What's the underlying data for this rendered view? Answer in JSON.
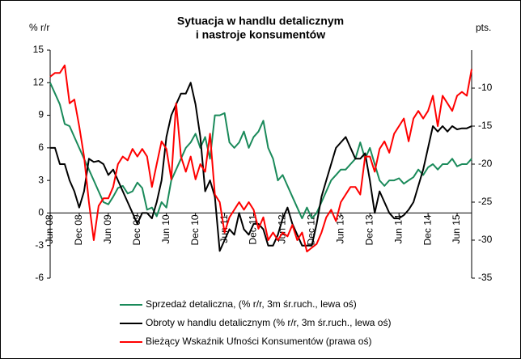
{
  "chart_data": {
    "type": "line",
    "title": [
      "Sytuacja w handlu detalicznym",
      "i nastroje konsumentów"
    ],
    "y_label": "% r/r",
    "y2_label": "pts.",
    "categories": [
      "Jun 08",
      null,
      null,
      null,
      null,
      null,
      "Dec 08",
      null,
      null,
      null,
      null,
      null,
      "Jun 09",
      null,
      null,
      null,
      null,
      null,
      "Dec 09",
      null,
      null,
      null,
      null,
      null,
      "Jun 10",
      null,
      null,
      null,
      null,
      null,
      "Dec 10",
      null,
      null,
      null,
      null,
      null,
      "Jun 11",
      null,
      null,
      null,
      null,
      null,
      "Dec 11",
      null,
      null,
      null,
      null,
      null,
      "Jun 12",
      null,
      null,
      null,
      null,
      null,
      "Dec 12",
      null,
      null,
      null,
      null,
      null,
      "Jun 13",
      null,
      null,
      null,
      null,
      null,
      "Dec 13",
      null,
      null,
      null,
      null,
      null,
      "Jun 14",
      null,
      null,
      null,
      null,
      null,
      "Dec 14",
      null,
      null,
      null,
      null,
      null,
      "Jun 15",
      null,
      null,
      null
    ],
    "series": [
      {
        "name": "Sprzedaż detaliczna, (% r/r, 3m śr.ruch., lewa oś)",
        "color": "#1a8a5a",
        "axis": "y",
        "values": [
          12,
          11,
          10,
          8.2,
          8,
          7,
          6,
          5,
          4,
          3,
          2,
          1,
          0.8,
          1.5,
          2.3,
          2.5,
          1.8,
          2,
          2.8,
          2.3,
          0.3,
          0.5,
          -0.3,
          1,
          0.5,
          3,
          4,
          5,
          6,
          6.5,
          7.3,
          6,
          7,
          5,
          9,
          9,
          9.2,
          6.5,
          6,
          6.5,
          7.5,
          6,
          7,
          7.5,
          8.5,
          6,
          5,
          3,
          3.5,
          2.5,
          1.5,
          0.5,
          -0.5,
          0.5,
          -0.5,
          0,
          1,
          2,
          3,
          3.5,
          4,
          4,
          4.5,
          5,
          6.5,
          5,
          6,
          4.5,
          3,
          2.5,
          3,
          3,
          3.2,
          2.7,
          3,
          3.3,
          4,
          3.5,
          4.2,
          4.5,
          4,
          4.5,
          4.5,
          5,
          4.3,
          4.5,
          4.5,
          5
        ]
      },
      {
        "name": "Obroty w handlu detalicznym (% r/r, 3m śr.ruch., lewa oś)",
        "color": "#000000",
        "axis": "y",
        "values": [
          6,
          6,
          4.5,
          4.5,
          3,
          2,
          0.5,
          2,
          5,
          4.7,
          4.8,
          4.5,
          3.5,
          4,
          3,
          2,
          1,
          0,
          -1,
          0,
          0,
          -0.5,
          1,
          3,
          7,
          9,
          10,
          11,
          11,
          12,
          10,
          7,
          2,
          3,
          1.5,
          -3.5,
          -2.5,
          -1.5,
          -2,
          0,
          -1.5,
          -2,
          -1,
          -1,
          -1.5,
          -3,
          -3,
          -2,
          -0.5,
          0.5,
          -1,
          -2,
          -3,
          -3,
          -3,
          -1,
          1.5,
          3,
          4.5,
          6,
          6.5,
          7,
          6,
          5,
          5,
          5.5,
          3,
          0,
          2,
          1,
          0,
          -0.5,
          -0.5,
          -0.2,
          0.3,
          1,
          2.5,
          4,
          6,
          8,
          7.5,
          8,
          7.5,
          8,
          7.7,
          7.8,
          7.8,
          8
        ]
      },
      {
        "name": "Bieżący Wskaźnik Ufności Konsumentów (prawa oś)",
        "color": "#ff0000",
        "axis": "y2",
        "values": [
          -8.5,
          -8,
          -8,
          -7,
          -12,
          -11.5,
          -15,
          -19,
          -25,
          -30,
          -25.5,
          -24.5,
          -24.5,
          -23,
          -20,
          -19,
          -19.5,
          -18,
          -19,
          -18,
          -19,
          -23,
          -20,
          -17,
          -18,
          -22,
          -12,
          -19,
          -21,
          -19,
          -22,
          -20,
          -21,
          -16,
          -24,
          -25,
          -29,
          -27,
          -26,
          -25,
          -26,
          -25,
          -26,
          -28.5,
          -27,
          -30,
          -29,
          -30,
          -29,
          -29.5,
          -28,
          -30,
          -29,
          -31.5,
          -31,
          -30.5,
          -29,
          -27,
          -26,
          -27.5,
          -25,
          -24,
          -23,
          -23,
          -24,
          -19,
          -19,
          -21,
          -18,
          -17,
          -18.5,
          -16,
          -15,
          -14,
          -17,
          -14,
          -13,
          -14,
          -13,
          -11,
          -15,
          -11,
          -12,
          -13,
          -11,
          -10.5,
          -11,
          -7.5
        ]
      }
    ],
    "ylim": [
      -6,
      15
    ],
    "yticks": [
      -6,
      -3,
      0,
      3,
      6,
      9,
      12,
      15
    ],
    "y2lim": [
      -35,
      -5
    ],
    "y2ticks": [
      -35,
      -30,
      -25,
      -20,
      -15,
      -10
    ]
  }
}
